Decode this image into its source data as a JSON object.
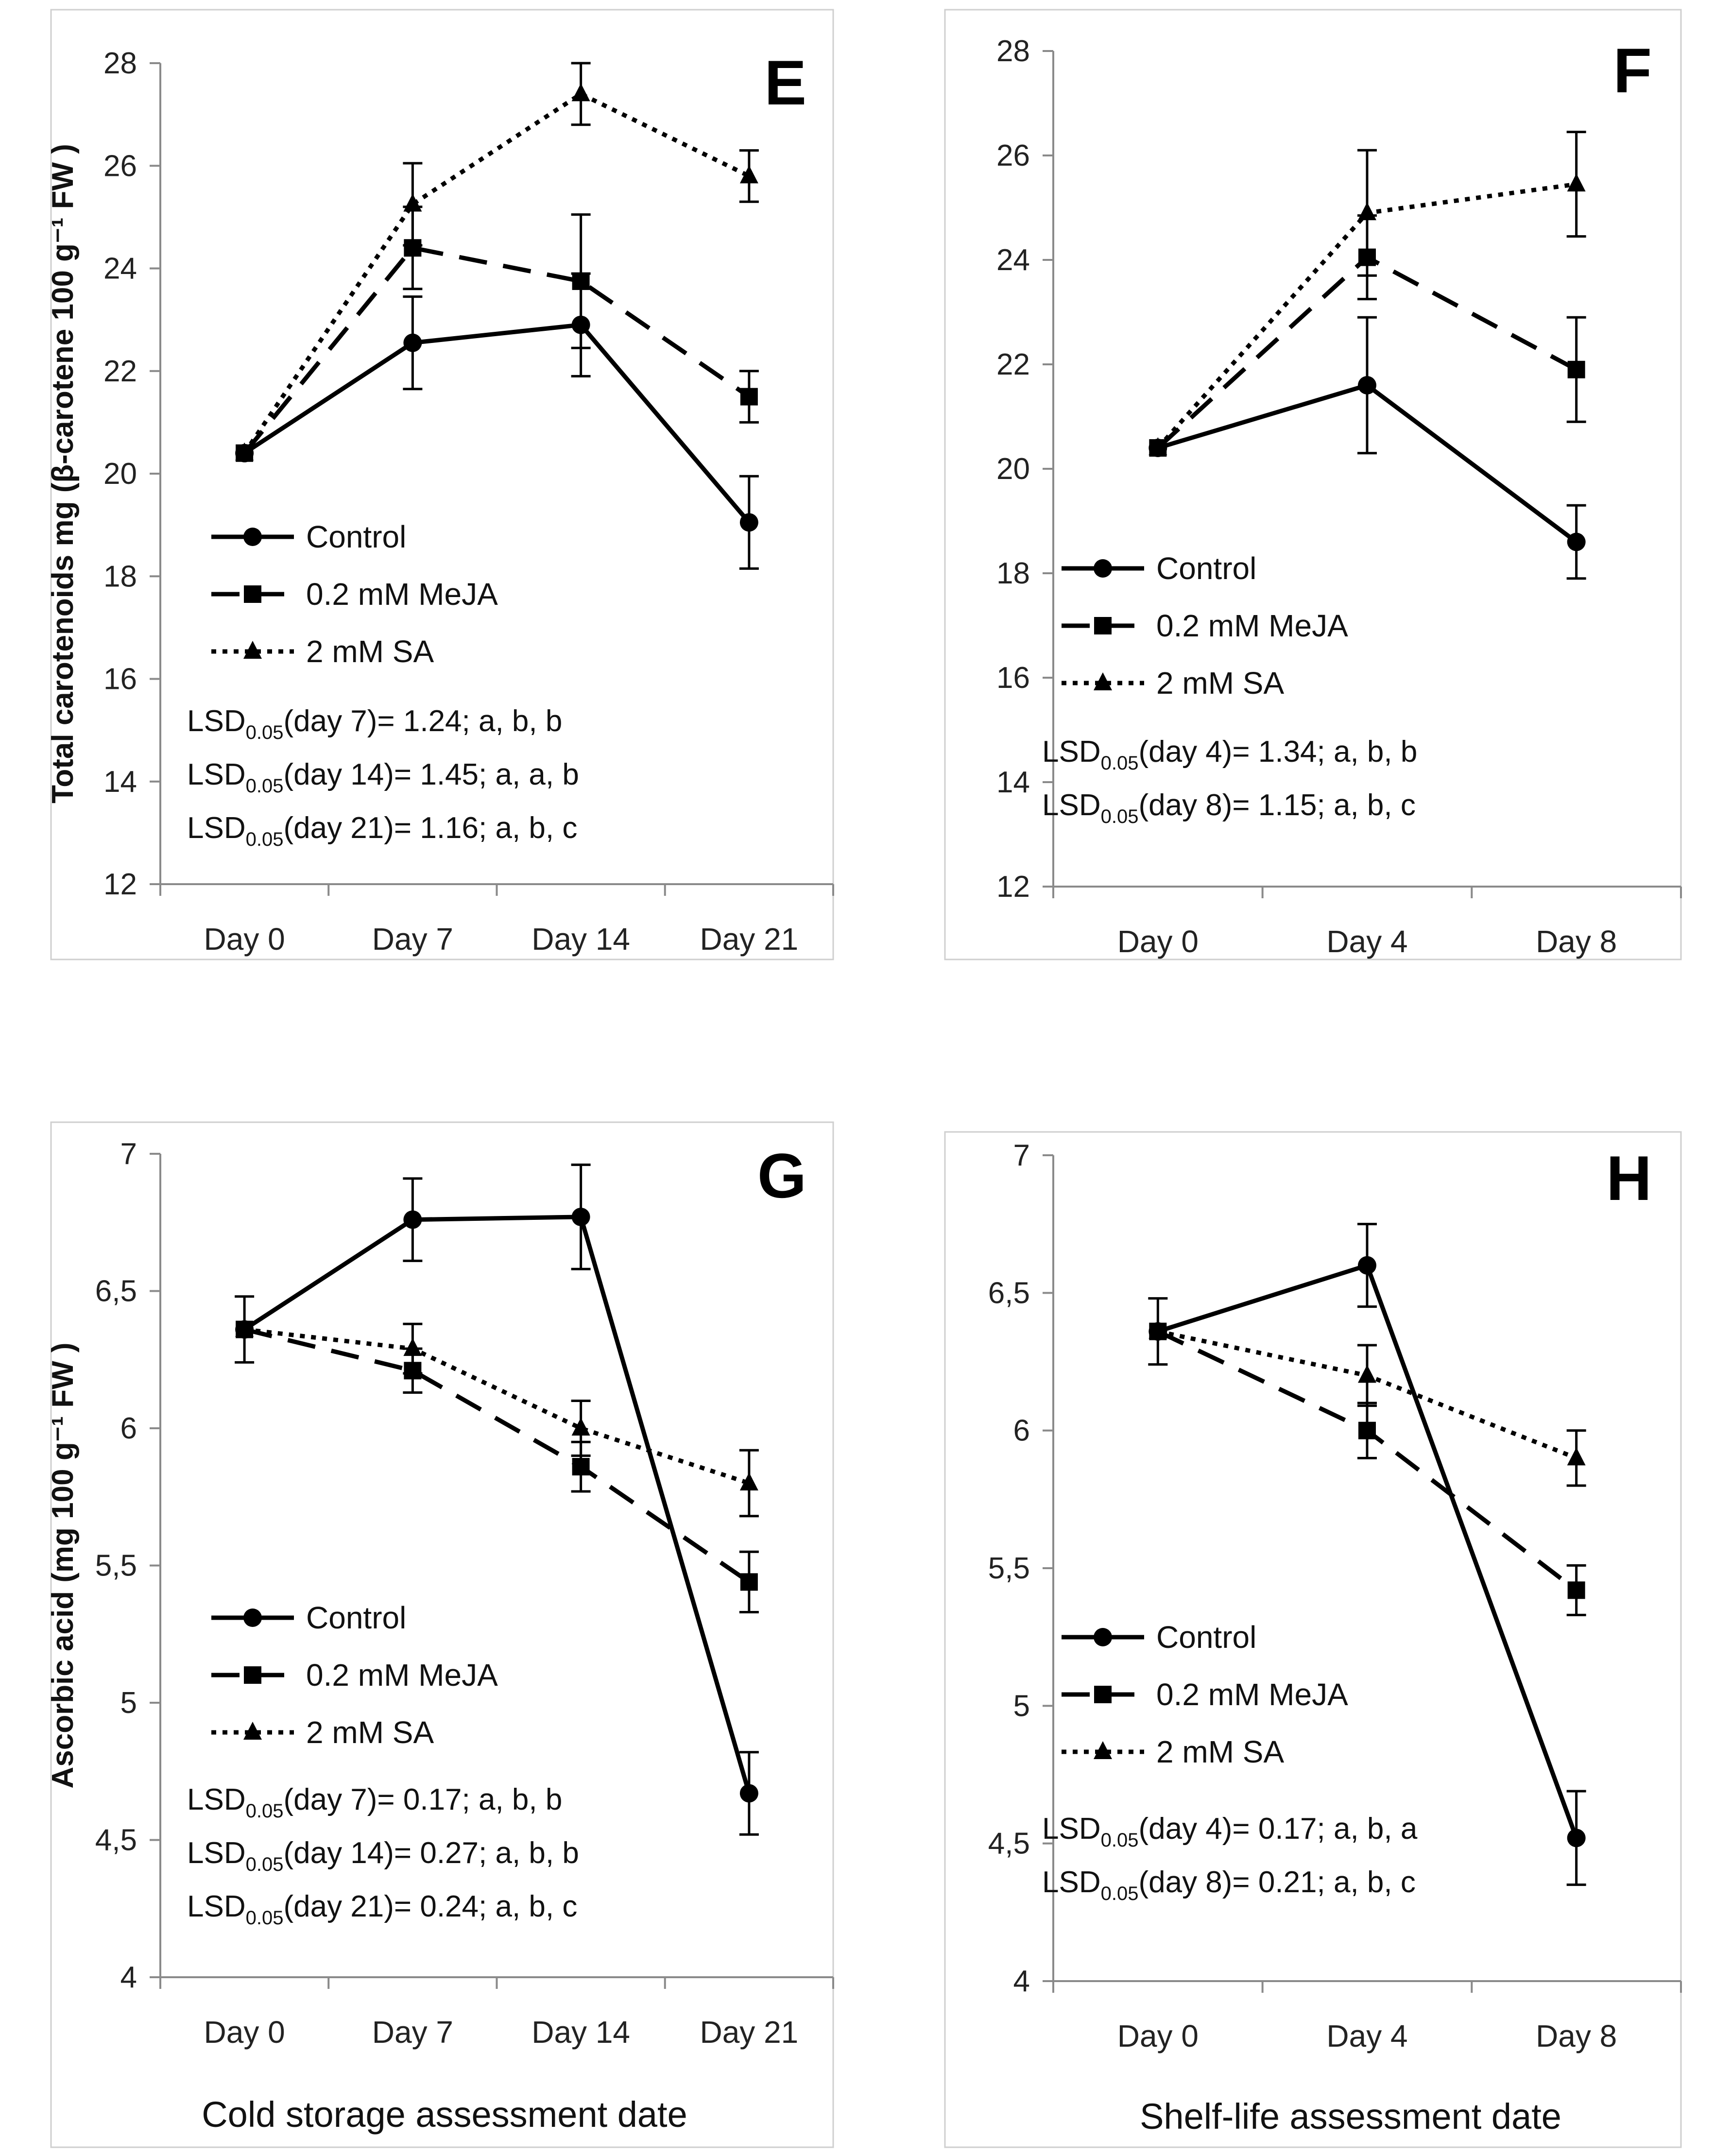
{
  "figure": {
    "series_styles": {
      "Control": {
        "color": "#000000",
        "dash": "none",
        "marker": "circle"
      },
      "0.2 mM MeJA": {
        "color": "#000000",
        "dash": "dashed",
        "marker": "square"
      },
      "2 mM SA": {
        "color": "#000000",
        "dash": "dotted",
        "marker": "triangle"
      }
    },
    "legend_labels": [
      "Control",
      "0.2 mM MeJA",
      "2 mM SA"
    ],
    "xlabel_cold": "Cold storage assessment date",
    "xlabel_shelf": "Shelf-life assessment date"
  },
  "chart_data": [
    {
      "panel": "E",
      "type": "line",
      "categories": [
        "Day 0",
        "Day 7",
        "Day 14",
        "Day 21"
      ],
      "ylabel": "Total carotenoids mg (β-carotene 100 g⁻¹ FW )",
      "ylim": [
        12,
        28
      ],
      "yticks": [
        "12",
        "14",
        "16",
        "18",
        "20",
        "22",
        "24",
        "26",
        "28"
      ],
      "series": [
        {
          "name": "Control",
          "values": [
            20.4,
            22.55,
            22.9,
            19.05
          ],
          "errors": [
            0.0,
            0.9,
            1.0,
            0.9
          ]
        },
        {
          "name": "0.2 mM MeJA",
          "values": [
            20.4,
            24.4,
            23.75,
            21.5
          ],
          "errors": [
            0.0,
            0.8,
            1.3,
            0.5
          ]
        },
        {
          "name": "2 mM SA",
          "values": [
            20.4,
            25.25,
            27.4,
            25.8
          ],
          "errors": [
            0.0,
            0.8,
            0.6,
            0.5
          ]
        }
      ],
      "annotations": [
        {
          "base": "LSD",
          "sub": "0.05",
          "rest": "(day 7)= 1.24; a, b, b"
        },
        {
          "base": "LSD",
          "sub": "0.05",
          "rest": "(day 14)= 1.45; a, a, b"
        },
        {
          "base": "LSD",
          "sub": "0.05",
          "rest": "(day 21)= 1.16; a, b, c"
        }
      ]
    },
    {
      "panel": "F",
      "type": "line",
      "categories": [
        "Day 0",
        "Day 4",
        "Day 8"
      ],
      "ylabel": "",
      "ylim": [
        12,
        28
      ],
      "yticks": [
        "12",
        "14",
        "16",
        "18",
        "20",
        "22",
        "24",
        "26",
        "28"
      ],
      "series": [
        {
          "name": "Control",
          "values": [
            20.4,
            21.6,
            18.6
          ],
          "errors": [
            0.0,
            1.3,
            0.7
          ]
        },
        {
          "name": "0.2 mM MeJA",
          "values": [
            20.4,
            24.05,
            21.9
          ],
          "errors": [
            0.0,
            0.8,
            1.0
          ]
        },
        {
          "name": "2 mM SA",
          "values": [
            20.4,
            24.9,
            25.45
          ],
          "errors": [
            0.0,
            1.2,
            1.0
          ]
        }
      ],
      "annotations": [
        {
          "base": "LSD",
          "sub": "0.05",
          "rest": "(day 4)= 1.34; a, b, b"
        },
        {
          "base": "LSD",
          "sub": "0.05",
          "rest": "(day 8)= 1.15; a, b, c"
        }
      ]
    },
    {
      "panel": "G",
      "type": "line",
      "categories": [
        "Day 0",
        "Day 7",
        "Day 14",
        "Day 21"
      ],
      "ylabel": "Ascorbic acid (mg 100 g⁻¹ FW )",
      "ylim": [
        4,
        7
      ],
      "yticks": [
        "4",
        "4,5",
        "5",
        "5,5",
        "6",
        "6,5",
        "7"
      ],
      "series": [
        {
          "name": "Control",
          "values": [
            6.36,
            6.76,
            6.77,
            4.67
          ],
          "errors": [
            0.12,
            0.15,
            0.19,
            0.15
          ]
        },
        {
          "name": "0.2 mM MeJA",
          "values": [
            6.36,
            6.21,
            5.86,
            5.44
          ],
          "errors": [
            0.0,
            0.08,
            0.09,
            0.11
          ]
        },
        {
          "name": "2 mM SA",
          "values": [
            6.36,
            6.29,
            6.0,
            5.8
          ],
          "errors": [
            0.0,
            0.09,
            0.1,
            0.12
          ]
        }
      ],
      "annotations": [
        {
          "base": "LSD",
          "sub": "0.05",
          "rest": "(day 7)= 0.17; a, b, b"
        },
        {
          "base": "LSD",
          "sub": "0.05",
          "rest": "(day 14)= 0.27; a, b, b"
        },
        {
          "base": "LSD",
          "sub": "0.05",
          "rest": "(day 21)= 0.24; a, b, c"
        }
      ]
    },
    {
      "panel": "H",
      "type": "line",
      "categories": [
        "Day 0",
        "Day 4",
        "Day 8"
      ],
      "ylabel": "",
      "ylim": [
        4,
        7
      ],
      "yticks": [
        "4",
        "4,5",
        "5",
        "5,5",
        "6",
        "6,5",
        "7"
      ],
      "series": [
        {
          "name": "Control",
          "values": [
            6.36,
            6.6,
            4.52
          ],
          "errors": [
            0.12,
            0.15,
            0.17
          ]
        },
        {
          "name": "0.2 mM MeJA",
          "values": [
            6.36,
            6.0,
            5.42
          ],
          "errors": [
            0.0,
            0.1,
            0.09
          ]
        },
        {
          "name": "2 mM SA",
          "values": [
            6.36,
            6.2,
            5.9
          ],
          "errors": [
            0.0,
            0.11,
            0.1
          ]
        }
      ],
      "annotations": [
        {
          "base": "LSD",
          "sub": "0.05",
          "rest": "(day 4)= 0.17; a, b, a"
        },
        {
          "base": "LSD",
          "sub": "0.05",
          "rest": "(day 8)= 0.21; a, b, c"
        }
      ]
    }
  ]
}
